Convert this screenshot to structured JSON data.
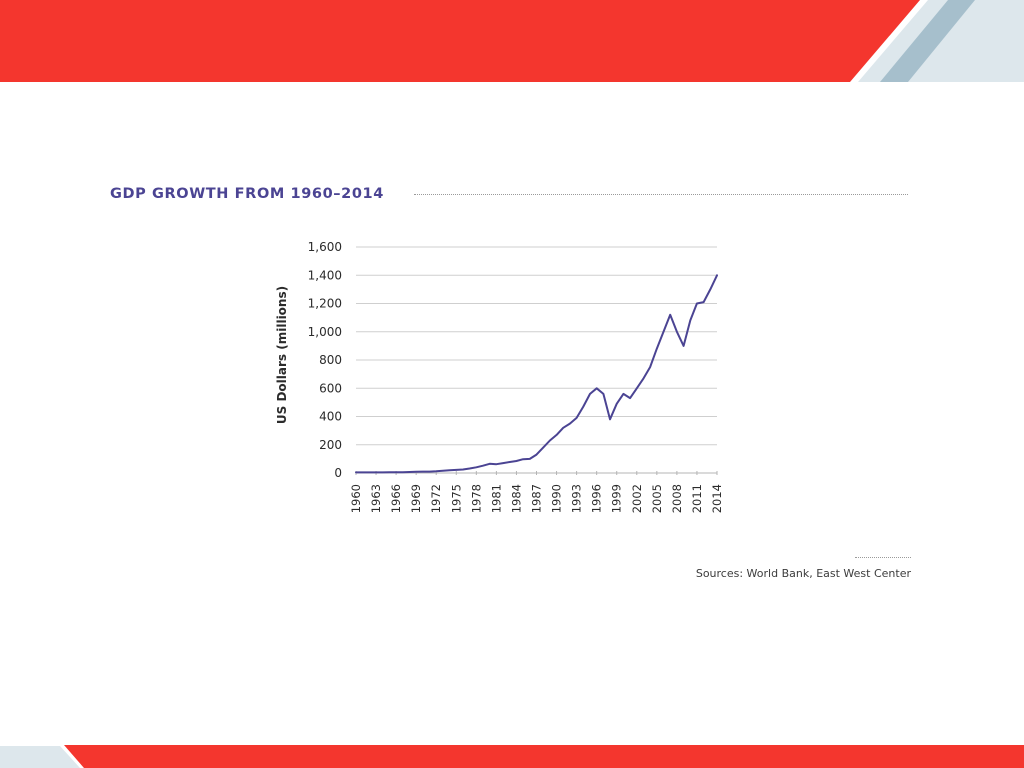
{
  "colors": {
    "banner_red": "#f4362e",
    "banner_blue": "#a6bfcc",
    "banner_light": "#dde7ec",
    "title": "#4b4493",
    "line": "#4b4493",
    "grid": "#cfcfcf"
  },
  "title": "GDP GROWTH FROM 1960–2014",
  "source": "Sources: World Bank, East West Center",
  "chart_data": {
    "type": "line",
    "title": "GDP GROWTH FROM 1960–2014",
    "xlabel": "",
    "ylabel": "US Dollars (millions)",
    "ylim": [
      0,
      1600
    ],
    "grid": true,
    "legend": "none",
    "yticks": [
      "0",
      "200",
      "400",
      "600",
      "800",
      "1,000",
      "1,200",
      "1,400",
      "1,600"
    ],
    "xticks": [
      "1960",
      "1963",
      "1966",
      "1969",
      "1972",
      "1975",
      "1978",
      "1981",
      "1984",
      "1987",
      "1990",
      "1993",
      "1996",
      "1999",
      "2002",
      "2005",
      "2008",
      "2011",
      "2014"
    ],
    "x": [
      1960,
      1961,
      1962,
      1963,
      1964,
      1965,
      1966,
      1967,
      1968,
      1969,
      1970,
      1971,
      1972,
      1973,
      1974,
      1975,
      1976,
      1977,
      1978,
      1979,
      1980,
      1981,
      1982,
      1983,
      1984,
      1985,
      1986,
      1987,
      1988,
      1989,
      1990,
      1991,
      1992,
      1993,
      1994,
      1995,
      1996,
      1997,
      1998,
      1999,
      2000,
      2001,
      2002,
      2003,
      2004,
      2005,
      2006,
      2007,
      2008,
      2009,
      2010,
      2011,
      2012,
      2013,
      2014
    ],
    "series": [
      {
        "values": [
          4,
          4,
          4,
          4,
          4,
          5,
          6,
          6,
          7,
          9,
          10,
          10,
          12,
          16,
          20,
          22,
          25,
          32,
          40,
          52,
          65,
          62,
          70,
          78,
          85,
          98,
          100,
          130,
          180,
          230,
          270,
          320,
          350,
          390,
          470,
          560,
          600,
          560,
          380,
          490,
          560,
          530,
          600,
          670,
          750,
          880,
          1000,
          1120,
          1000,
          900,
          1080,
          1200,
          1210,
          1300,
          1400
        ]
      }
    ]
  }
}
